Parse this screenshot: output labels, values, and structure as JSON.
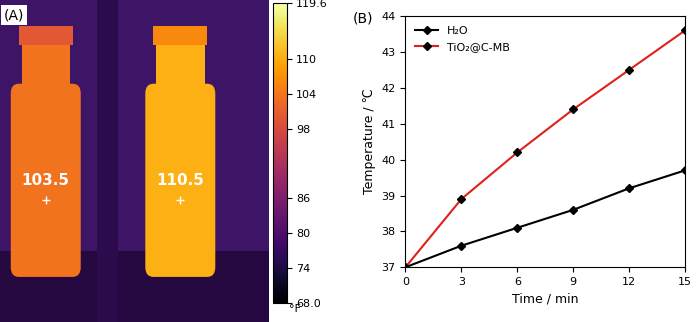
{
  "thermal_image": {
    "label": "(A)",
    "readings": [
      103.5,
      110.5
    ],
    "colorbar": {
      "lim": [
        68.0,
        119.6
      ],
      "ticks": [
        68.0,
        74,
        80,
        86,
        98,
        104,
        110,
        119.6
      ],
      "unit": "°F"
    }
  },
  "chart_data": {
    "type": "line",
    "label": "(B)",
    "x_label": "Time / min",
    "y_label": "Temperature / ℃",
    "x": [
      0,
      3,
      6,
      9,
      12,
      15
    ],
    "series": [
      {
        "name": "H₂O",
        "color": "#000000",
        "marker": "diamond",
        "values": [
          37,
          37.6,
          38.1,
          38.6,
          39.2,
          39.7
        ]
      },
      {
        "name": "TiO₂@C-MB",
        "color": "#e0201b",
        "marker": "diamond",
        "values": [
          37,
          38.9,
          40.2,
          41.4,
          42.5,
          43.6
        ]
      }
    ],
    "xlim": [
      0,
      15
    ],
    "ylim": [
      37,
      44
    ],
    "xticks": [
      0,
      3,
      6,
      9,
      12,
      15
    ],
    "yticks": [
      37,
      38,
      39,
      40,
      41,
      42,
      43,
      44
    ],
    "legend": "upper left",
    "grid": false
  }
}
